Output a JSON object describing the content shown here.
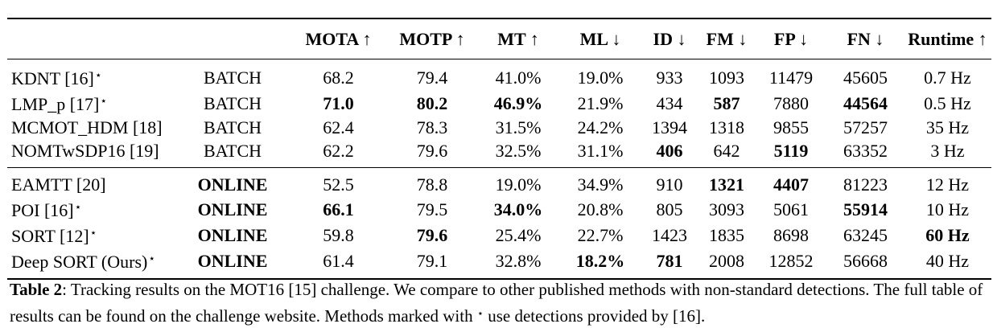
{
  "table": {
    "columns": [
      "",
      "",
      "MOTA ↑",
      "MOTP ↑",
      "MT ↑",
      "ML ↓",
      "ID ↓",
      "FM ↓",
      "FP ↓",
      "FN ↓",
      "Runtime ↑"
    ],
    "batch_rows": [
      {
        "cells": [
          "KDNT [16]",
          "BATCH",
          "68.2",
          "79.4",
          "41.0%",
          "19.0%",
          "933",
          "1093",
          "11479",
          "45605",
          "0.7 Hz"
        ],
        "star": true,
        "bold": []
      },
      {
        "cells": [
          "LMP_p [17]",
          "BATCH",
          "71.0",
          "80.2",
          "46.9%",
          "21.9%",
          "434",
          "587",
          "7880",
          "44564",
          "0.5 Hz"
        ],
        "star": true,
        "bold": [
          2,
          3,
          4,
          7,
          9
        ]
      },
      {
        "cells": [
          "MCMOT_HDM [18]",
          "BATCH",
          "62.4",
          "78.3",
          "31.5%",
          "24.2%",
          "1394",
          "1318",
          "9855",
          "57257",
          "35 Hz"
        ],
        "star": false,
        "bold": []
      },
      {
        "cells": [
          "NOMTwSDP16 [19]",
          "BATCH",
          "62.2",
          "79.6",
          "32.5%",
          "31.1%",
          "406",
          "642",
          "5119",
          "63352",
          "3 Hz"
        ],
        "star": false,
        "bold": [
          6,
          8
        ]
      }
    ],
    "online_rows": [
      {
        "cells": [
          "EAMTT [20]",
          "ONLINE",
          "52.5",
          "78.8",
          "19.0%",
          "34.9%",
          "910",
          "1321",
          "4407",
          "81223",
          "12 Hz"
        ],
        "star": false,
        "bold": [
          1,
          7,
          8
        ]
      },
      {
        "cells": [
          "POI [16]",
          "ONLINE",
          "66.1",
          "79.5",
          "34.0%",
          "20.8%",
          "805",
          "3093",
          "5061",
          "55914",
          "10 Hz"
        ],
        "star": true,
        "bold": [
          1,
          2,
          4,
          9
        ]
      },
      {
        "cells": [
          "SORT [12]",
          "ONLINE",
          "59.8",
          "79.6",
          "25.4%",
          "22.7%",
          "1423",
          "1835",
          "8698",
          "63245",
          "60 Hz"
        ],
        "star": true,
        "bold": [
          1,
          3,
          10
        ]
      },
      {
        "cells": [
          "Deep SORT (Ours)",
          "ONLINE",
          "61.4",
          "79.1",
          "32.8%",
          "18.2%",
          "781",
          "2008",
          "12852",
          "56668",
          "40 Hz"
        ],
        "star": true,
        "bold": [
          1,
          5,
          6
        ]
      }
    ]
  },
  "caption": {
    "label": "Table 2",
    "text_1": ": Tracking results on the MOT16 [15] challenge. We compare to other published methods with non-standard detections. The full table of results can be found on the challenge website. Methods marked with ",
    "star": "⋆",
    "text_2": " use detections provided by [16]."
  }
}
